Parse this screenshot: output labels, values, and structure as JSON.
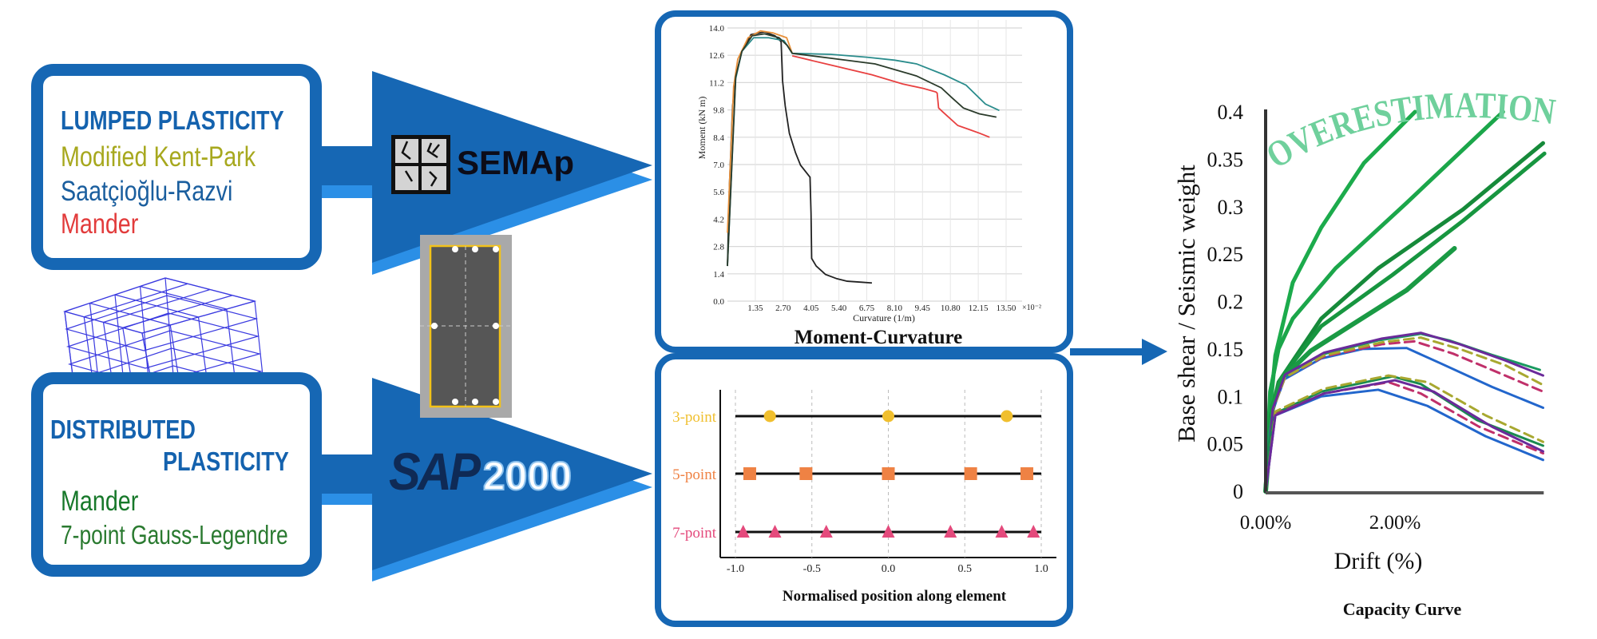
{
  "lumped": {
    "title": "LUMPED PLASTICITY",
    "models": [
      {
        "label": "Modified Kent-Park",
        "color": "#a7a81e"
      },
      {
        "label": "Saatçioğlu-Razvi",
        "color": "#1a5e9e"
      },
      {
        "label": "Mander",
        "color": "#e23b3b"
      }
    ],
    "software": "SEMAp"
  },
  "distributed": {
    "title_line1": "DISTRIBUTED",
    "title_line2": "PLASTICITY",
    "models": [
      {
        "label": "Mander",
        "color": "#17782a"
      },
      {
        "label": "7-point Gauss-Legendre",
        "color": "#2a7a30"
      }
    ],
    "software_main": "SAP",
    "software_num": "2000"
  },
  "colors": {
    "dark_blue": "#1667b4",
    "light_blue": "#2b8fe6",
    "overestimation": "#6fd09c"
  },
  "annotation": "OVERESTIMATION",
  "chart_data": [
    {
      "type": "line",
      "title": "Moment-Curvature",
      "xlabel": "Curvature (1/m)",
      "xmultiplier": "×10⁻²",
      "ylabel": "Moment (kN m)",
      "xlim": [
        0,
        13.5
      ],
      "ylim": [
        0,
        14.0
      ],
      "xticks": [
        "1.35",
        "2.70",
        "4.05",
        "5.40",
        "6.75",
        "8.10",
        "9.45",
        "10.80",
        "12.15",
        "13.50"
      ],
      "yticks": [
        "0.0",
        "1.4",
        "2.8",
        "4.2",
        "5.6",
        "7.0",
        "8.4",
        "9.8",
        "11.2",
        "12.6",
        "14.0"
      ],
      "grid": true,
      "series": [
        {
          "color": "#222222",
          "points": [
            [
              0,
              1.8
            ],
            [
              0.1,
              6
            ],
            [
              0.25,
              10
            ],
            [
              0.4,
              11.5
            ],
            [
              0.7,
              12.8
            ],
            [
              1.14,
              13.66
            ],
            [
              1.8,
              13.8
            ],
            [
              2.3,
              13.6
            ],
            [
              2.6,
              13.3
            ],
            [
              2.67,
              11.3
            ],
            [
              2.8,
              10
            ],
            [
              3.0,
              8.6
            ],
            [
              3.3,
              7.6
            ],
            [
              3.54,
              6.97
            ],
            [
              4.0,
              6.35
            ],
            [
              4.05,
              4.5
            ],
            [
              4.08,
              2.19
            ],
            [
              4.3,
              1.8
            ],
            [
              4.75,
              1.37
            ],
            [
              5.3,
              1.15
            ],
            [
              5.8,
              1.02
            ],
            [
              6.5,
              0.97
            ],
            [
              7.0,
              0.93
            ]
          ]
        },
        {
          "color": "#e8903a",
          "points": [
            [
              0,
              3.5
            ],
            [
              0.3,
              11
            ],
            [
              0.5,
              12.4
            ],
            [
              1.0,
              13.5
            ],
            [
              1.6,
              13.85
            ],
            [
              2.2,
              13.75
            ],
            [
              2.87,
              13.5
            ],
            [
              3.14,
              12.7
            ]
          ]
        },
        {
          "color": "#2a8c8c",
          "points": [
            [
              0,
              1.8
            ],
            [
              0.4,
              11.4
            ],
            [
              0.7,
              12.8
            ],
            [
              1.27,
              13.5
            ],
            [
              2.0,
              13.5
            ],
            [
              2.74,
              13.35
            ],
            [
              3.14,
              12.7
            ],
            [
              5,
              12.65
            ],
            [
              6.75,
              12.5
            ],
            [
              8.1,
              12.35
            ],
            [
              9.16,
              12.16
            ],
            [
              10.5,
              11.6
            ],
            [
              11.56,
              11.07
            ],
            [
              12.5,
              10.1
            ],
            [
              13.17,
              9.77
            ]
          ]
        },
        {
          "color": "#2b3b2b",
          "points": [
            [
              0,
              1.8
            ],
            [
              0.4,
              11.5
            ],
            [
              0.7,
              12.8
            ],
            [
              1.2,
              13.6
            ],
            [
              1.8,
              13.7
            ],
            [
              2.5,
              13.5
            ],
            [
              2.9,
              13.1
            ],
            [
              3.14,
              12.7
            ],
            [
              5.0,
              12.45
            ],
            [
              7.15,
              12.16
            ],
            [
              9.16,
              11.54
            ],
            [
              10.36,
              10.93
            ],
            [
              10.9,
              10.4
            ],
            [
              11.43,
              9.9
            ],
            [
              12.2,
              9.6
            ],
            [
              13.03,
              9.43
            ]
          ]
        },
        {
          "color": "#e84040",
          "points": [
            [
              3.14,
              12.57
            ],
            [
              5,
              12.1
            ],
            [
              7,
              11.6
            ],
            [
              8.49,
              11.13
            ],
            [
              9.5,
              10.9
            ],
            [
              10.1,
              10.72
            ],
            [
              10.16,
              10.66
            ],
            [
              10.23,
              9.9
            ],
            [
              10.43,
              9.7
            ],
            [
              11.16,
              9.0
            ],
            [
              11.7,
              8.8
            ],
            [
              12.23,
              8.6
            ],
            [
              12.7,
              8.4
            ]
          ]
        }
      ]
    },
    {
      "type": "scatter",
      "xlabel": "Normalised position along element",
      "xlim": [
        -1.0,
        1.0
      ],
      "xticks": [
        "-1.0",
        "-0.5",
        "0.0",
        "0.5",
        "1.0"
      ],
      "series": [
        {
          "name": "3-point",
          "marker": "circle",
          "color": "#f0bf2e",
          "x": [
            -0.7746,
            0,
            0.7746
          ]
        },
        {
          "name": "5-point",
          "marker": "square",
          "color": "#ef8244",
          "x": [
            -0.9062,
            -0.5385,
            0,
            0.5385,
            0.9062
          ]
        },
        {
          "name": "7-point",
          "marker": "triangle",
          "color": "#e44a7c",
          "x": [
            -0.9491,
            -0.7415,
            -0.4058,
            0,
            0.4058,
            0.7415,
            0.9491
          ]
        }
      ]
    },
    {
      "type": "line",
      "title": "Capacity Curve",
      "xlabel": "Drift (%)",
      "ylabel": "Base shear / Seismic weight",
      "xlim": [
        0,
        4.3
      ],
      "ylim": [
        0,
        0.4
      ],
      "xticks": [
        {
          "v": 0,
          "label": "0.00%"
        },
        {
          "v": 2,
          "label": "2.00%"
        }
      ],
      "yticks": [
        "0",
        "0.05",
        "0.1",
        "0.15",
        "0.2",
        "0.25",
        "0.3",
        "0.35",
        "0.4"
      ],
      "grid": false,
      "series": [
        {
          "color": "#1cab4c",
          "dash": false,
          "width": 5,
          "points": [
            [
              0,
              0
            ],
            [
              0.05,
              0.07
            ],
            [
              0.15,
              0.143
            ],
            [
              0.42,
              0.22
            ],
            [
              0.86,
              0.278
            ],
            [
              1.52,
              0.346
            ],
            [
              2.31,
              0.4
            ]
          ]
        },
        {
          "color": "#1ba64a",
          "dash": false,
          "width": 5,
          "points": [
            [
              0,
              0
            ],
            [
              0.07,
              0.105
            ],
            [
              0.2,
              0.15
            ],
            [
              0.42,
              0.182
            ],
            [
              1.08,
              0.235
            ],
            [
              2.18,
              0.304
            ],
            [
              3.67,
              0.4
            ]
          ]
        },
        {
          "color": "#168a3a",
          "dash": false,
          "width": 5,
          "points": [
            [
              0,
              0
            ],
            [
              0.08,
              0.08
            ],
            [
              0.2,
              0.115
            ],
            [
              0.86,
              0.182
            ],
            [
              1.74,
              0.235
            ],
            [
              3.05,
              0.297
            ],
            [
              4.29,
              0.367
            ]
          ]
        },
        {
          "color": "#179640",
          "dash": false,
          "width": 5,
          "points": [
            [
              0,
              0
            ],
            [
              0.1,
              0.09
            ],
            [
              0.3,
              0.125
            ],
            [
              0.86,
              0.174
            ],
            [
              1.96,
              0.228
            ],
            [
              3.05,
              0.285
            ],
            [
              4.31,
              0.356
            ]
          ]
        },
        {
          "color": "#1a9a44",
          "dash": false,
          "width": 6,
          "points": [
            [
              0,
              0
            ],
            [
              0.1,
              0.085
            ],
            [
              0.24,
              0.118
            ],
            [
              0.7,
              0.148
            ],
            [
              1.3,
              0.174
            ],
            [
              2.18,
              0.212
            ],
            [
              2.92,
              0.256
            ]
          ]
        },
        {
          "color": "#1a9a60",
          "dash": false,
          "width": 3,
          "points": [
            [
              0,
              0
            ],
            [
              0.05,
              0.06
            ],
            [
              0.11,
              0.086
            ],
            [
              0.29,
              0.121
            ],
            [
              0.86,
              0.144
            ],
            [
              1.74,
              0.159
            ],
            [
              2.4,
              0.166
            ],
            [
              2.84,
              0.159
            ],
            [
              3.49,
              0.144
            ],
            [
              4.24,
              0.128
            ]
          ]
        },
        {
          "color": "#2266cc",
          "dash": false,
          "width": 3,
          "points": [
            [
              0,
              0
            ],
            [
              0.11,
              0.085
            ],
            [
              0.29,
              0.118
            ],
            [
              0.86,
              0.14
            ],
            [
              1.5,
              0.15
            ],
            [
              2.18,
              0.151
            ],
            [
              2.7,
              0.135
            ],
            [
              3.5,
              0.11
            ],
            [
              4.29,
              0.088
            ]
          ]
        },
        {
          "color": "#c0306a",
          "dash": true,
          "width": 3,
          "points": [
            [
              0,
              0
            ],
            [
              0.11,
              0.086
            ],
            [
              0.3,
              0.12
            ],
            [
              0.9,
              0.142
            ],
            [
              1.8,
              0.155
            ],
            [
              2.3,
              0.158
            ],
            [
              2.9,
              0.145
            ],
            [
              3.6,
              0.125
            ],
            [
              4.29,
              0.105
            ]
          ]
        },
        {
          "color": "#a8a830",
          "dash": true,
          "width": 3,
          "points": [
            [
              0,
              0
            ],
            [
              0.11,
              0.086
            ],
            [
              0.3,
              0.12
            ],
            [
              0.9,
              0.143
            ],
            [
              1.8,
              0.157
            ],
            [
              2.4,
              0.162
            ],
            [
              3.0,
              0.15
            ],
            [
              3.7,
              0.133
            ],
            [
              4.29,
              0.112
            ]
          ]
        },
        {
          "color": "#6a2a9a",
          "dash": false,
          "width": 3,
          "points": [
            [
              0,
              0
            ],
            [
              0.11,
              0.087
            ],
            [
              0.3,
              0.123
            ],
            [
              0.9,
              0.146
            ],
            [
              1.8,
              0.161
            ],
            [
              2.4,
              0.167
            ],
            [
              3.0,
              0.155
            ],
            [
              3.7,
              0.138
            ],
            [
              4.29,
              0.122
            ]
          ]
        },
        {
          "color": "#1a8a50",
          "dash": false,
          "width": 3,
          "points": [
            [
              0,
              0
            ],
            [
              0.05,
              0.05
            ],
            [
              0.15,
              0.082
            ],
            [
              0.86,
              0.105
            ],
            [
              1.96,
              0.121
            ],
            [
              2.4,
              0.113
            ],
            [
              3.27,
              0.075
            ],
            [
              4.29,
              0.048
            ]
          ]
        },
        {
          "color": "#2266cc",
          "dash": false,
          "width": 3,
          "points": [
            [
              0,
              0
            ],
            [
              0.15,
              0.08
            ],
            [
              0.86,
              0.1
            ],
            [
              1.74,
              0.107
            ],
            [
              2.5,
              0.09
            ],
            [
              3.4,
              0.058
            ],
            [
              4.29,
              0.033
            ]
          ]
        },
        {
          "color": "#c0306a",
          "dash": true,
          "width": 3,
          "points": [
            [
              0,
              0
            ],
            [
              0.15,
              0.081
            ],
            [
              0.9,
              0.103
            ],
            [
              1.9,
              0.115
            ],
            [
              2.4,
              0.103
            ],
            [
              3.3,
              0.068
            ],
            [
              4.29,
              0.04
            ]
          ]
        },
        {
          "color": "#a8a830",
          "dash": true,
          "width": 3,
          "points": [
            [
              0,
              0
            ],
            [
              0.15,
              0.084
            ],
            [
              0.9,
              0.108
            ],
            [
              1.9,
              0.122
            ],
            [
              2.5,
              0.115
            ],
            [
              3.4,
              0.08
            ],
            [
              4.29,
              0.052
            ]
          ]
        },
        {
          "color": "#6a2a9a",
          "dash": false,
          "width": 3,
          "points": [
            [
              0,
              0
            ],
            [
              0.15,
              0.08
            ],
            [
              0.9,
              0.103
            ],
            [
              2.0,
              0.117
            ],
            [
              2.6,
              0.105
            ],
            [
              3.5,
              0.068
            ],
            [
              4.29,
              0.042
            ]
          ]
        }
      ]
    }
  ]
}
